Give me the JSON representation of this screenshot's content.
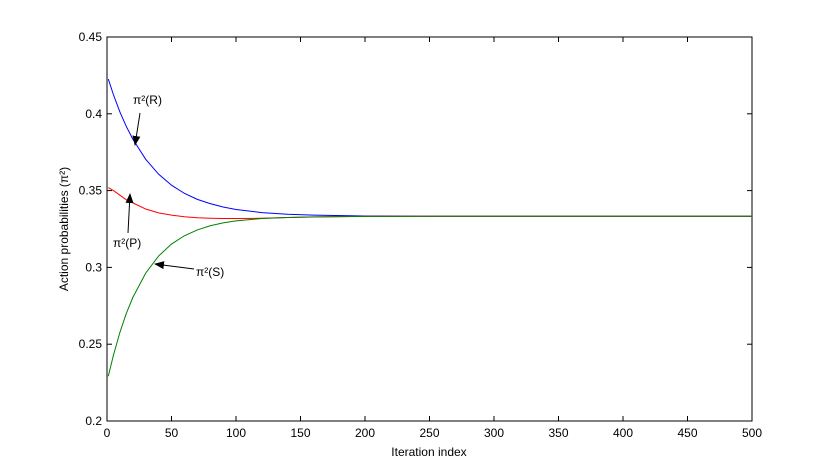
{
  "chart_data": {
    "type": "line",
    "xlabel": "Iteration index",
    "ylabel": "Action probabilities (π²)",
    "x": [
      1,
      5,
      10,
      15,
      20,
      30,
      40,
      50,
      60,
      70,
      80,
      90,
      100,
      120,
      140,
      160,
      200,
      250,
      300,
      400,
      500
    ],
    "series": [
      {
        "name": "π²(R)",
        "color": "#0000ff",
        "values": [
          0.4226,
          0.4124,
          0.4012,
          0.3917,
          0.3835,
          0.3704,
          0.3607,
          0.3535,
          0.3482,
          0.3443,
          0.3415,
          0.3393,
          0.3377,
          0.3357,
          0.3346,
          0.334,
          0.3335,
          0.3333,
          0.3333,
          0.3333,
          0.3333
        ]
      },
      {
        "name": "π²(P)",
        "color": "#ff0000",
        "values": [
          0.352,
          0.35,
          0.347,
          0.344,
          0.342,
          0.338,
          0.3355,
          0.334,
          0.333,
          0.3323,
          0.332,
          0.3318,
          0.3318,
          0.332,
          0.3325,
          0.3328,
          0.3332,
          0.3333,
          0.3333,
          0.3333,
          0.3333
        ]
      },
      {
        "name": "π²(S)",
        "color": "#008000",
        "values": [
          0.2291,
          0.2429,
          0.2577,
          0.2701,
          0.2804,
          0.2963,
          0.3074,
          0.3152,
          0.3206,
          0.3244,
          0.3271,
          0.329,
          0.3303,
          0.3318,
          0.3325,
          0.3329,
          0.3332,
          0.3333,
          0.3333,
          0.3333,
          0.3333
        ]
      }
    ],
    "xlim": [
      0,
      500
    ],
    "xticks": [
      0,
      50,
      100,
      150,
      200,
      250,
      300,
      350,
      400,
      450,
      500
    ],
    "ylim": [
      0.2,
      0.45
    ],
    "yticks": [
      0.2,
      0.25,
      0.3,
      0.35,
      0.4,
      0.45
    ],
    "grid": false
  }
}
